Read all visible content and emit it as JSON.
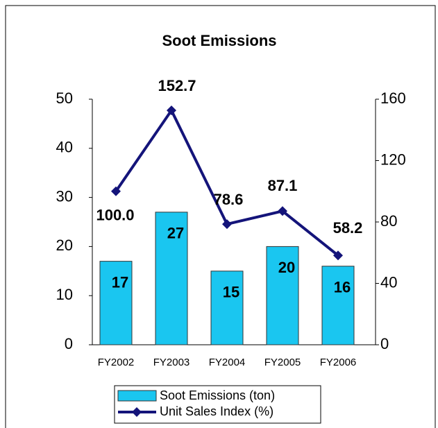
{
  "chart_data": {
    "type": "bar_line",
    "title": "Soot Emissions",
    "categories": [
      "FY2002",
      "FY2003",
      "FY2004",
      "FY2005",
      "FY2006"
    ],
    "series": [
      {
        "name": "Soot Emissions (ton)",
        "type": "bar",
        "color": "#1ac6f0",
        "values": [
          17,
          27,
          15,
          20,
          16
        ]
      },
      {
        "name": "Unit Sales Index (%)",
        "type": "line",
        "axis": "y2",
        "color": "#14147a",
        "values": [
          100.0,
          152.7,
          78.6,
          87.1,
          58.2
        ],
        "value_labels": [
          "100.0",
          "152.7",
          "78.6",
          "87.1",
          "58.2"
        ]
      }
    ],
    "ylim": [
      0,
      50
    ],
    "yticks": [
      0,
      10,
      20,
      30,
      40,
      50
    ],
    "y2lim": [
      0,
      160
    ],
    "y2ticks": [
      0,
      40,
      80,
      120,
      160
    ],
    "legend": "bottom"
  }
}
